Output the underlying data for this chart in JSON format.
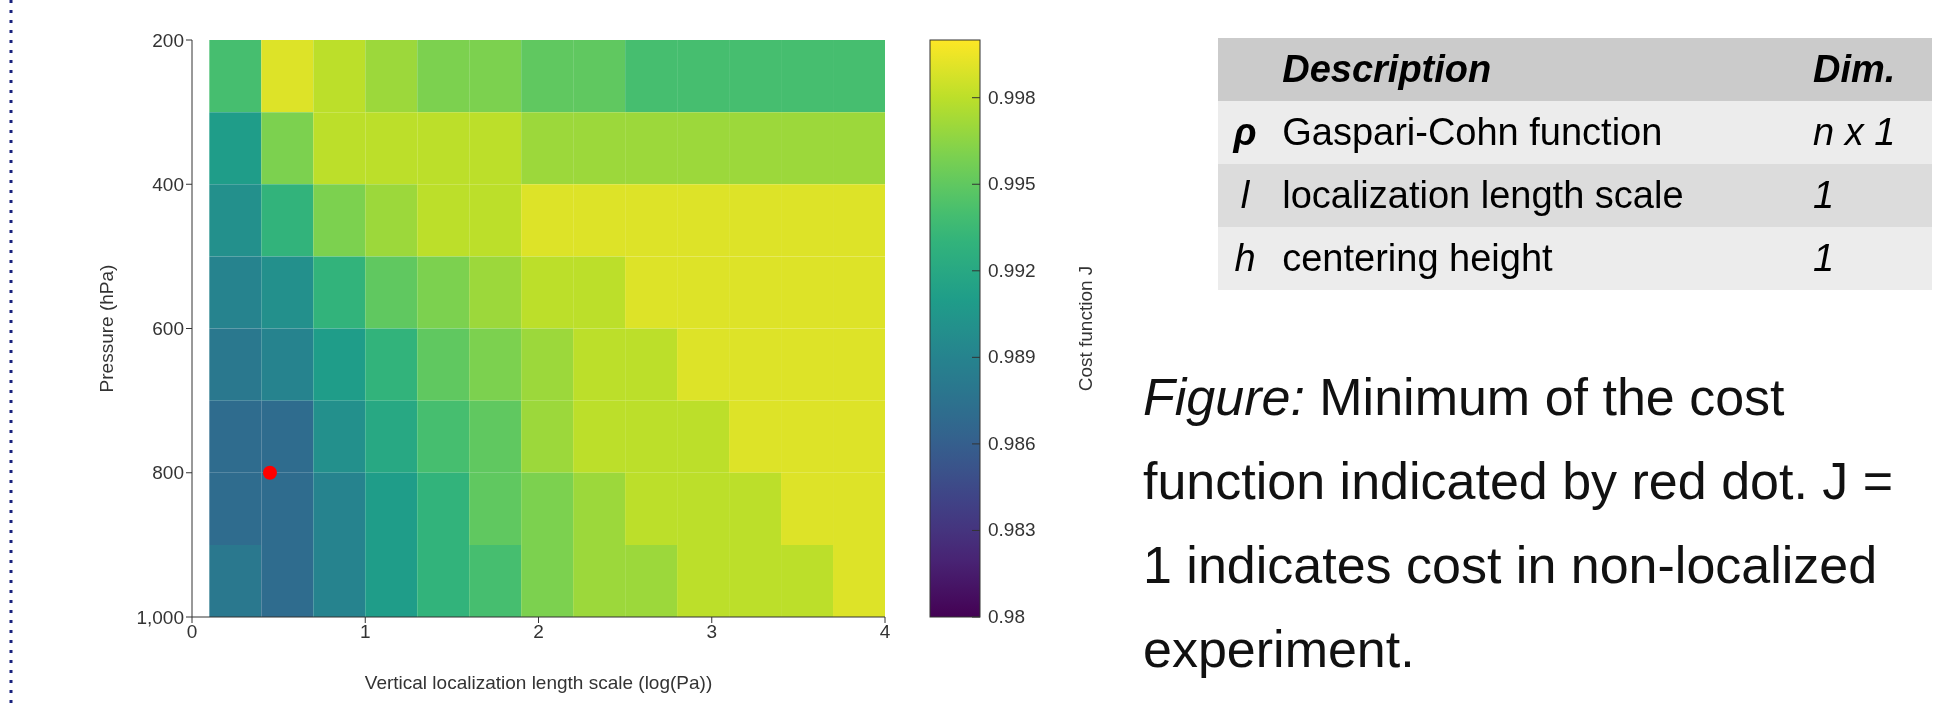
{
  "chart_data": {
    "type": "heatmap",
    "xlabel": "Vertical localization length scale (log(Pa))",
    "ylabel": "Pressure (hPa)",
    "clabel": "Cost function J",
    "x": [
      0.25,
      0.55,
      0.85,
      1.15,
      1.45,
      1.75,
      2.05,
      2.35,
      2.65,
      2.95,
      3.25,
      3.55,
      3.85
    ],
    "y": [
      250,
      350,
      450,
      550,
      650,
      750,
      850,
      950
    ],
    "cells": [
      [
        0.994,
        0.999,
        0.998,
        0.997,
        0.996,
        0.996,
        0.995,
        0.995,
        0.994,
        0.994,
        0.994,
        0.994,
        0.994
      ],
      [
        0.991,
        0.996,
        0.998,
        0.998,
        0.998,
        0.998,
        0.997,
        0.997,
        0.997,
        0.997,
        0.997,
        0.997,
        0.997
      ],
      [
        0.99,
        0.993,
        0.996,
        0.997,
        0.998,
        0.998,
        0.999,
        0.999,
        0.999,
        0.999,
        0.999,
        0.999,
        0.999
      ],
      [
        0.989,
        0.99,
        0.993,
        0.995,
        0.996,
        0.997,
        0.998,
        0.998,
        0.999,
        0.999,
        0.999,
        0.999,
        0.999
      ],
      [
        0.988,
        0.989,
        0.991,
        0.993,
        0.995,
        0.996,
        0.997,
        0.998,
        0.998,
        0.999,
        0.999,
        0.999,
        0.999
      ],
      [
        0.987,
        0.987,
        0.99,
        0.992,
        0.994,
        0.995,
        0.997,
        0.998,
        0.998,
        0.998,
        0.999,
        0.999,
        0.999
      ],
      [
        0.987,
        0.987,
        0.989,
        0.991,
        0.993,
        0.995,
        0.996,
        0.997,
        0.998,
        0.998,
        0.998,
        0.999,
        0.999
      ],
      [
        0.988,
        0.987,
        0.989,
        0.991,
        0.993,
        0.994,
        0.996,
        0.997,
        0.997,
        0.998,
        0.998,
        0.998,
        0.999
      ]
    ],
    "series": [
      {
        "type": "scatter",
        "x": [
          0.45
        ],
        "values": [
          800
        ],
        "color": "#ff0000"
      }
    ],
    "xlim": [
      0,
      4
    ],
    "xticks": [
      0,
      1,
      2,
      3,
      4
    ],
    "ylim": [
      1000,
      200
    ],
    "yticks": [
      200,
      400,
      600,
      800,
      {
        "value": 1000,
        "label": "1,000"
      }
    ],
    "clim": [
      0.98,
      1.0
    ],
    "cticks": [
      0.98,
      0.983,
      0.986,
      0.989,
      0.992,
      0.995,
      0.998
    ],
    "grid": false,
    "legend": false,
    "annotations": [
      "Description",
      "Dim.",
      "ρ",
      "Gaspari-Cohn function",
      "n x 1",
      "l",
      "localization length scale",
      "1",
      "h",
      "centering height",
      "1",
      "Figure: Minimum of the cost function indicated by red dot. J = 1 indicates cost in non-localized experiment."
    ]
  }
}
